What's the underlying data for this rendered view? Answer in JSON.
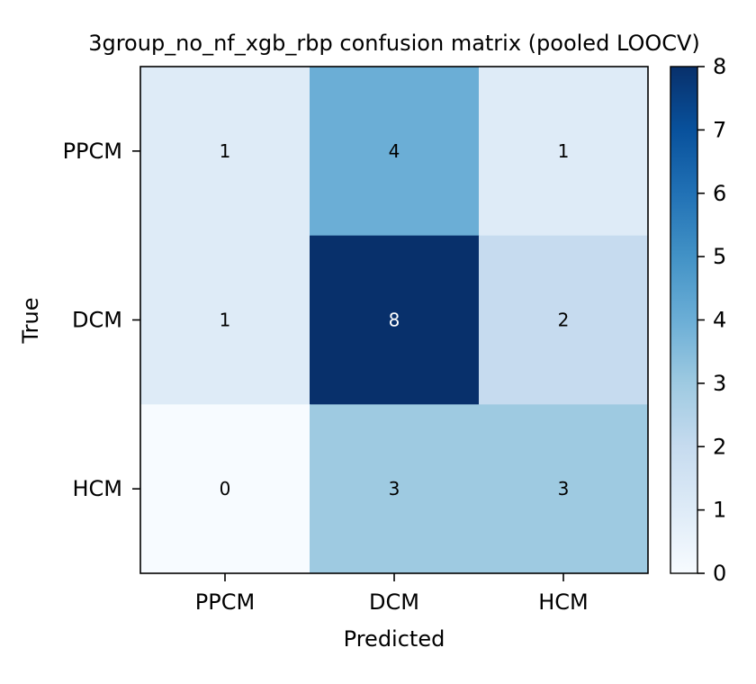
{
  "chart_data": {
    "type": "heatmap",
    "title": "3group_no_nf_xgb_rbp confusion matrix (pooled LOOCV)",
    "xlabel": "Predicted",
    "ylabel": "True",
    "x_categories": [
      "PPCM",
      "DCM",
      "HCM"
    ],
    "y_categories": [
      "PPCM",
      "DCM",
      "HCM"
    ],
    "values": [
      [
        1,
        4,
        1
      ],
      [
        1,
        8,
        2
      ],
      [
        0,
        3,
        3
      ]
    ],
    "colormap": "Blues",
    "vmin": 0,
    "vmax": 8,
    "colorbar_ticks": [
      0,
      1,
      2,
      3,
      4,
      5,
      6,
      7,
      8
    ],
    "grid": false
  }
}
